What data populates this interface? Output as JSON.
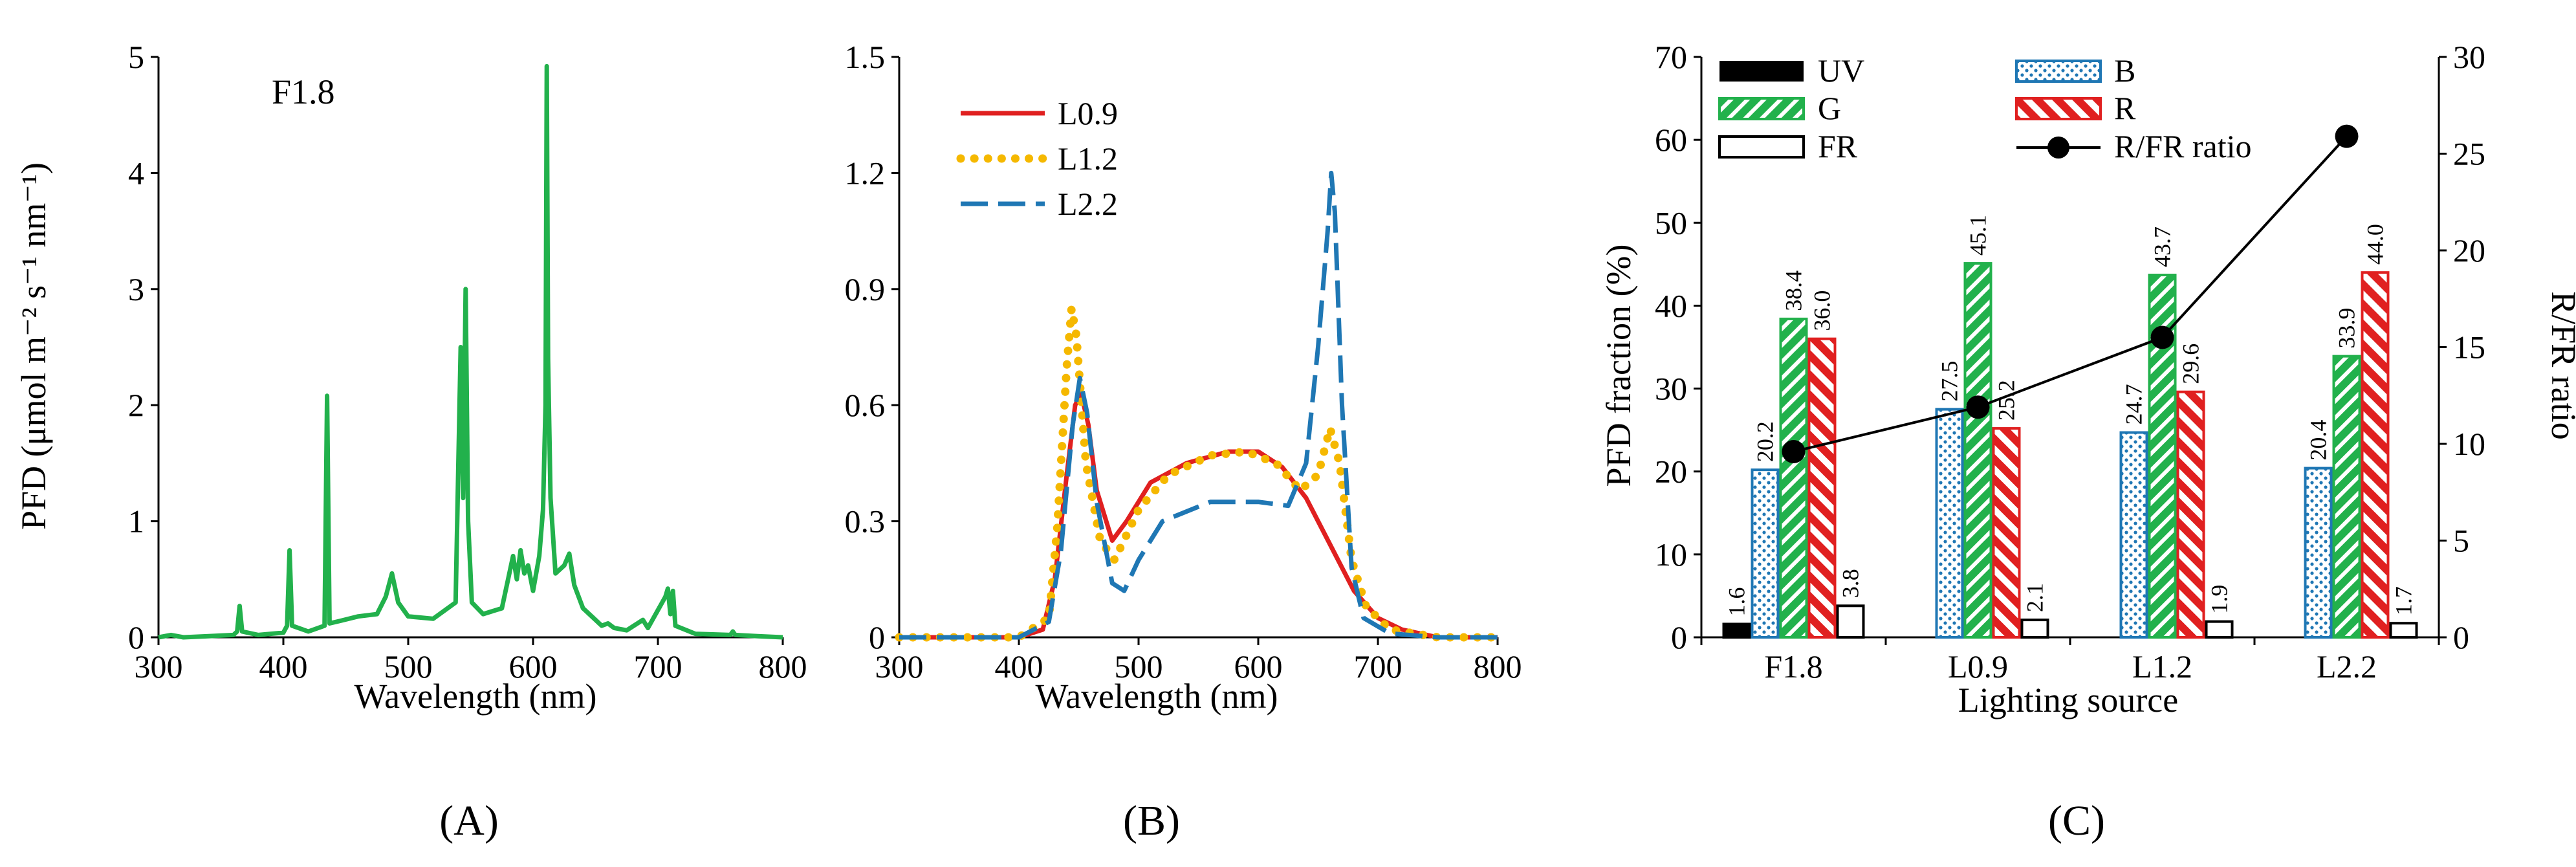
{
  "panel_labels": {
    "a": "(A)",
    "b": "(B)",
    "c": "(C)"
  },
  "chart_data": [
    {
      "type": "line",
      "panel": "A",
      "xlabel": "Wavelength (nm)",
      "ylabel": "PFD (μmol m⁻² s⁻¹ nm⁻¹)",
      "xlim": [
        300,
        800
      ],
      "ylim": [
        0,
        5
      ],
      "xticks": [
        "300",
        "400",
        "500",
        "600",
        "700",
        "800"
      ],
      "yticks": [
        "0",
        "1",
        "2",
        "3",
        "4",
        "5"
      ],
      "annotation": "F1.8",
      "series": [
        {
          "color": "#22b14c",
          "points": [
            [
              300,
              0.0
            ],
            [
              310,
              0.02
            ],
            [
              320,
              0.0
            ],
            [
              340,
              0.01
            ],
            [
              360,
              0.02
            ],
            [
              363,
              0.05
            ],
            [
              365,
              0.27
            ],
            [
              367,
              0.05
            ],
            [
              380,
              0.02
            ],
            [
              400,
              0.04
            ],
            [
              403,
              0.1
            ],
            [
              405,
              0.75
            ],
            [
              407,
              0.1
            ],
            [
              420,
              0.05
            ],
            [
              433,
              0.1
            ],
            [
              435,
              2.08
            ],
            [
              437,
              0.12
            ],
            [
              445,
              0.14
            ],
            [
              460,
              0.18
            ],
            [
              475,
              0.2
            ],
            [
              482,
              0.35
            ],
            [
              487,
              0.55
            ],
            [
              492,
              0.3
            ],
            [
              500,
              0.18
            ],
            [
              520,
              0.16
            ],
            [
              538,
              0.3
            ],
            [
              542,
              2.5
            ],
            [
              544,
              1.2
            ],
            [
              546,
              3.0
            ],
            [
              548,
              1.0
            ],
            [
              551,
              0.3
            ],
            [
              560,
              0.2
            ],
            [
              575,
              0.25
            ],
            [
              580,
              0.5
            ],
            [
              584,
              0.7
            ],
            [
              587,
              0.5
            ],
            [
              590,
              0.75
            ],
            [
              593,
              0.55
            ],
            [
              596,
              0.62
            ],
            [
              600,
              0.4
            ],
            [
              605,
              0.7
            ],
            [
              608,
              1.1
            ],
            [
              610,
              2.0
            ],
            [
              611,
              4.92
            ],
            [
              612,
              2.4
            ],
            [
              614,
              1.2
            ],
            [
              618,
              0.55
            ],
            [
              625,
              0.62
            ],
            [
              629,
              0.72
            ],
            [
              633,
              0.45
            ],
            [
              640,
              0.25
            ],
            [
              650,
              0.15
            ],
            [
              655,
              0.1
            ],
            [
              660,
              0.12
            ],
            [
              665,
              0.08
            ],
            [
              675,
              0.06
            ],
            [
              688,
              0.15
            ],
            [
              692,
              0.08
            ],
            [
              706,
              0.35
            ],
            [
              708,
              0.42
            ],
            [
              710,
              0.2
            ],
            [
              712,
              0.4
            ],
            [
              714,
              0.1
            ],
            [
              730,
              0.03
            ],
            [
              758,
              0.02
            ],
            [
              760,
              0.05
            ],
            [
              762,
              0.02
            ],
            [
              780,
              0.01
            ],
            [
              800,
              0.0
            ]
          ]
        }
      ]
    },
    {
      "type": "line",
      "panel": "B",
      "xlabel": "Wavelength (nm)",
      "xlim": [
        300,
        800
      ],
      "ylim": [
        0,
        1.5
      ],
      "xticks": [
        "300",
        "400",
        "500",
        "600",
        "700",
        "800"
      ],
      "yticks": [
        "0",
        "0.3",
        "0.6",
        "0.9",
        "1.2",
        "1.5"
      ],
      "legend_position": "top-left",
      "series": [
        {
          "name": "L0.9",
          "color": "#e02020",
          "style": "solid",
          "points": [
            [
              300,
              0
            ],
            [
              400,
              0
            ],
            [
              420,
              0.02
            ],
            [
              430,
              0.15
            ],
            [
              440,
              0.42
            ],
            [
              447,
              0.6
            ],
            [
              452,
              0.63
            ],
            [
              458,
              0.55
            ],
            [
              465,
              0.38
            ],
            [
              478,
              0.25
            ],
            [
              490,
              0.3
            ],
            [
              510,
              0.4
            ],
            [
              540,
              0.45
            ],
            [
              575,
              0.48
            ],
            [
              600,
              0.48
            ],
            [
              620,
              0.44
            ],
            [
              640,
              0.36
            ],
            [
              660,
              0.24
            ],
            [
              680,
              0.12
            ],
            [
              700,
              0.05
            ],
            [
              720,
              0.02
            ],
            [
              750,
              0.0
            ],
            [
              800,
              0
            ]
          ]
        },
        {
          "name": "L1.2",
          "color": "#f5b800",
          "style": "dotted",
          "points": [
            [
              300,
              0
            ],
            [
              400,
              0
            ],
            [
              425,
              0.05
            ],
            [
              432,
              0.28
            ],
            [
              440,
              0.7
            ],
            [
              444,
              0.85
            ],
            [
              448,
              0.78
            ],
            [
              456,
              0.45
            ],
            [
              468,
              0.25
            ],
            [
              480,
              0.2
            ],
            [
              500,
              0.33
            ],
            [
              525,
              0.42
            ],
            [
              560,
              0.47
            ],
            [
              590,
              0.48
            ],
            [
              615,
              0.45
            ],
            [
              635,
              0.38
            ],
            [
              650,
              0.42
            ],
            [
              660,
              0.54
            ],
            [
              668,
              0.45
            ],
            [
              678,
              0.2
            ],
            [
              690,
              0.08
            ],
            [
              710,
              0.02
            ],
            [
              750,
              0
            ],
            [
              800,
              0
            ]
          ]
        },
        {
          "name": "L2.2",
          "color": "#1f77b4",
          "style": "dashed",
          "points": [
            [
              300,
              0
            ],
            [
              400,
              0
            ],
            [
              425,
              0.04
            ],
            [
              435,
              0.22
            ],
            [
              445,
              0.55
            ],
            [
              451,
              0.67
            ],
            [
              457,
              0.58
            ],
            [
              465,
              0.35
            ],
            [
              478,
              0.14
            ],
            [
              488,
              0.12
            ],
            [
              500,
              0.2
            ],
            [
              520,
              0.3
            ],
            [
              560,
              0.35
            ],
            [
              600,
              0.35
            ],
            [
              625,
              0.34
            ],
            [
              640,
              0.45
            ],
            [
              650,
              0.75
            ],
            [
              658,
              1.05
            ],
            [
              661,
              1.2
            ],
            [
              664,
              1.1
            ],
            [
              670,
              0.6
            ],
            [
              678,
              0.18
            ],
            [
              688,
              0.05
            ],
            [
              710,
              0.01
            ],
            [
              750,
              0
            ],
            [
              800,
              0
            ]
          ]
        }
      ]
    },
    {
      "type": "bar",
      "panel": "C",
      "xlabel": "Lighting source",
      "ylabel": "PFD fraction (%)",
      "y2label": "R/FR ratio",
      "ylim": [
        0,
        70
      ],
      "y2lim": [
        0,
        30
      ],
      "yticks": [
        "0",
        "10",
        "20",
        "30",
        "40",
        "50",
        "60",
        "70"
      ],
      "y2ticks": [
        "0",
        "5",
        "10",
        "15",
        "20",
        "25",
        "30"
      ],
      "categories": [
        "F1.8",
        "L0.9",
        "L1.2",
        "L2.2"
      ],
      "legend_position": "top",
      "series": [
        {
          "name": "UV",
          "pattern": "solid-black",
          "values": [
            1.6,
            0,
            0,
            0
          ],
          "labels": [
            "1.6",
            "",
            "",
            ""
          ]
        },
        {
          "name": "B",
          "pattern": "blue-dots",
          "values": [
            20.2,
            27.5,
            24.7,
            20.4
          ],
          "labels": [
            "20.2",
            "27.5",
            "24.7",
            "20.4"
          ]
        },
        {
          "name": "G",
          "pattern": "green-hatch",
          "values": [
            38.4,
            45.1,
            43.7,
            33.9
          ],
          "labels": [
            "38.4",
            "45.1",
            "43.7",
            "33.9"
          ]
        },
        {
          "name": "R",
          "pattern": "red-hatch",
          "values": [
            36.0,
            25.2,
            29.6,
            44.0
          ],
          "labels": [
            "36.0",
            "25.2",
            "29.6",
            "44.0"
          ]
        },
        {
          "name": "FR",
          "pattern": "white",
          "values": [
            3.8,
            2.1,
            1.9,
            1.7
          ],
          "labels": [
            "3.8",
            "2.1",
            "1.9",
            "1.7"
          ]
        }
      ],
      "line_series": {
        "name": "R/FR ratio",
        "axis": "right",
        "values": [
          9.6,
          11.9,
          15.5,
          25.9
        ]
      },
      "colors": {
        "blue": "#1f77b4",
        "green": "#22b14c",
        "red": "#e02020",
        "black": "#000000"
      }
    }
  ]
}
